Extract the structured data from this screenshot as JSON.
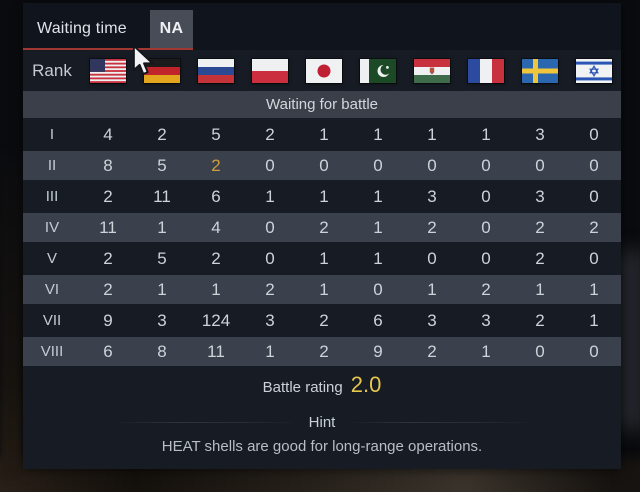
{
  "tabs": [
    {
      "label": "Waiting time",
      "active": false
    },
    {
      "label": "NA",
      "active": true
    }
  ],
  "rank_label": "Rank",
  "nations": [
    {
      "name": "usa-flag",
      "nation": "USA"
    },
    {
      "name": "germany-flag",
      "nation": "Germany"
    },
    {
      "name": "russia-flag",
      "nation": "Russia"
    },
    {
      "name": "poland-flag",
      "nation": "Poland"
    },
    {
      "name": "japan-flag",
      "nation": "Japan"
    },
    {
      "name": "pakistan-flag",
      "nation": "Pakistan"
    },
    {
      "name": "hungary-flag",
      "nation": "Hungary"
    },
    {
      "name": "france-flag",
      "nation": "France"
    },
    {
      "name": "sweden-flag",
      "nation": "Sweden"
    },
    {
      "name": "israel-flag",
      "nation": "Israel"
    }
  ],
  "table": {
    "header": "Waiting for battle",
    "rows": [
      {
        "rank": "I",
        "values": [
          4,
          2,
          5,
          2,
          1,
          1,
          1,
          1,
          3,
          0
        ],
        "highlighted": false
      },
      {
        "rank": "II",
        "values": [
          8,
          5,
          2,
          0,
          0,
          0,
          0,
          0,
          0,
          0
        ],
        "highlighted": true,
        "accent_value_index": 2
      },
      {
        "rank": "III",
        "values": [
          2,
          11,
          6,
          1,
          1,
          1,
          3,
          0,
          3,
          0
        ],
        "highlighted": false
      },
      {
        "rank": "IV",
        "values": [
          11,
          1,
          4,
          0,
          2,
          1,
          2,
          0,
          2,
          2
        ],
        "highlighted": true
      },
      {
        "rank": "V",
        "values": [
          2,
          5,
          2,
          0,
          1,
          1,
          0,
          0,
          2,
          0
        ],
        "highlighted": false
      },
      {
        "rank": "VI",
        "values": [
          2,
          1,
          1,
          2,
          1,
          0,
          1,
          2,
          1,
          1
        ],
        "highlighted": true
      },
      {
        "rank": "VII",
        "values": [
          9,
          3,
          124,
          3,
          2,
          6,
          3,
          3,
          2,
          1
        ],
        "highlighted": false
      },
      {
        "rank": "VIII",
        "values": [
          6,
          8,
          11,
          1,
          2,
          9,
          2,
          1,
          0,
          0
        ],
        "highlighted": true
      }
    ]
  },
  "battle_rating": {
    "label": "Battle rating",
    "value": "2.0"
  },
  "hint": {
    "title": "Hint",
    "text": "HEAT shells are good for long-range operations."
  },
  "colors": {
    "panel_bg": "#161b24",
    "strip_bg": "#10141c",
    "header_bar": "#3a3f49",
    "row_highlight": "#3b414c",
    "tab_active_bg": "#474c57",
    "tab_underline": "#a23831",
    "text": "#ced3da",
    "orange": "#cf9d3c",
    "gold": "#e6c64e"
  }
}
